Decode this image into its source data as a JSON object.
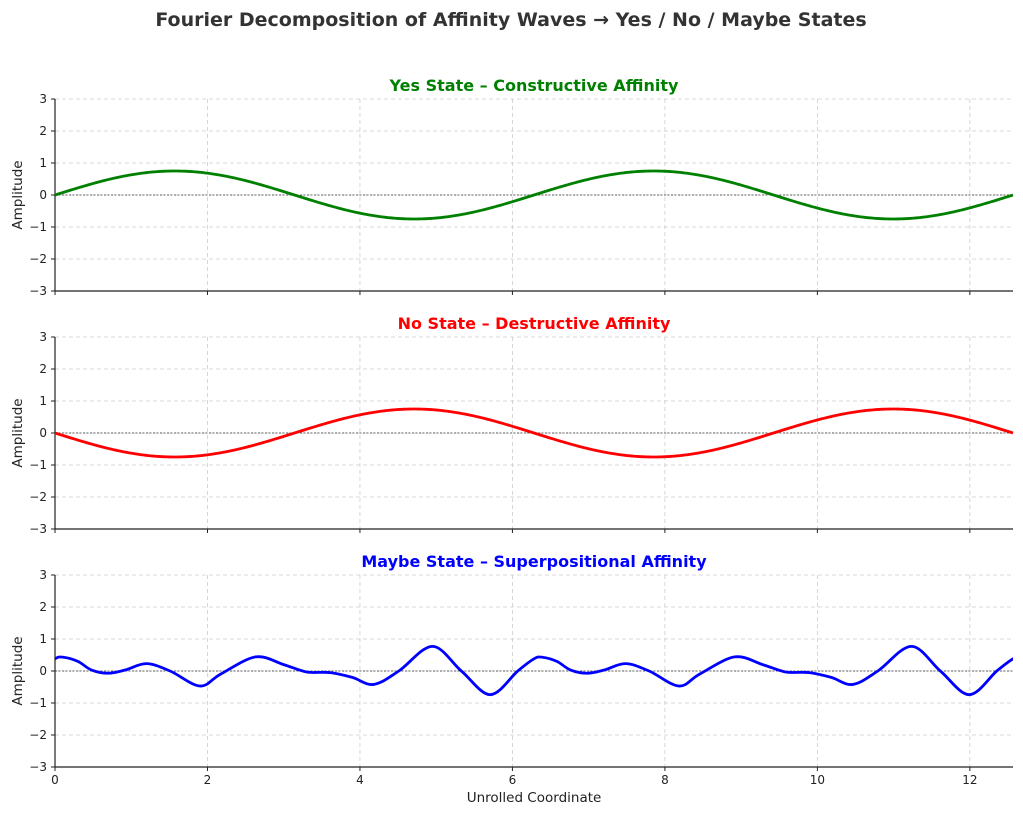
{
  "chart_data": {
    "type": "line",
    "title": "Fourier Decomposition of Affinity Waves → Yes / No / Maybe States",
    "xlabel": "Unrolled Coordinate",
    "xlim": [
      0,
      12.566
    ],
    "xticks": [
      "0",
      "2",
      "4",
      "6",
      "8",
      "10",
      "12"
    ],
    "grid": true,
    "panels": [
      {
        "title": "Yes State – Constructive Affinity",
        "color": "#008000",
        "ylabel": "Amplitude",
        "ylim": [
          -3,
          3
        ],
        "yticks": [
          "3",
          "2",
          "1",
          "0",
          "−1",
          "−2",
          "−3"
        ],
        "formula": {
          "amplitude": 0.75,
          "frequency": 1,
          "sign": 1
        }
      },
      {
        "title": "No State – Destructive Affinity",
        "color": "#ff0000",
        "ylabel": "Amplitude",
        "ylim": [
          -3,
          3
        ],
        "yticks": [
          "3",
          "2",
          "1",
          "0",
          "−1",
          "−2",
          "−3"
        ],
        "formula": {
          "amplitude": 0.75,
          "frequency": 1,
          "sign": -1
        }
      },
      {
        "title": "Maybe State – Superpositional Affinity",
        "color": "#0000ff",
        "ylabel": "Amplitude",
        "ylim": [
          -3,
          3
        ],
        "yticks": [
          "3",
          "2",
          "1",
          "0",
          "−1",
          "−2",
          "−3"
        ],
        "period": 6.283,
        "points": [
          [
            0,
            0.38
          ],
          [
            0.11,
            0.43
          ],
          [
            0.3,
            0.3
          ],
          [
            0.48,
            0.03
          ],
          [
            0.7,
            -0.07
          ],
          [
            0.92,
            0.03
          ],
          [
            1.2,
            0.23
          ],
          [
            1.51,
            0
          ],
          [
            1.9,
            -0.47
          ],
          [
            2.17,
            -0.1
          ],
          [
            2.63,
            0.44
          ],
          [
            3.0,
            0.2
          ],
          [
            3.3,
            -0.03
          ],
          [
            3.61,
            -0.05
          ],
          [
            3.9,
            -0.2
          ],
          [
            4.18,
            -0.42
          ],
          [
            4.51,
            0
          ],
          [
            4.95,
            0.77
          ],
          [
            5.33,
            0
          ],
          [
            5.71,
            -0.74
          ],
          [
            6.07,
            0
          ],
          [
            6.283,
            0.38
          ]
        ]
      }
    ]
  }
}
